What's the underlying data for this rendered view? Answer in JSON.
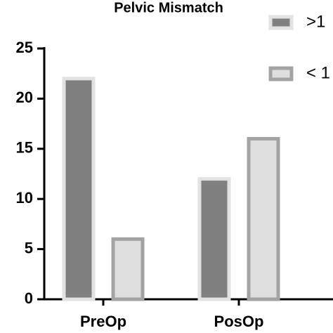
{
  "chart_data": {
    "type": "bar",
    "title": "Pelvic Mismatch",
    "categories": [
      "PreOp",
      "PosOp"
    ],
    "series": [
      {
        "name": ">1",
        "color": "#7f7f7f",
        "edge": "#e2e2e2",
        "values": [
          22,
          12
        ]
      },
      {
        "name": "< 1",
        "color": "#dedede",
        "edge": "#a3a3a3",
        "values": [
          6,
          16
        ]
      }
    ],
    "ylim": [
      0,
      25
    ],
    "yticks": [
      0,
      5,
      10,
      15,
      20,
      25
    ],
    "grid": false
  }
}
